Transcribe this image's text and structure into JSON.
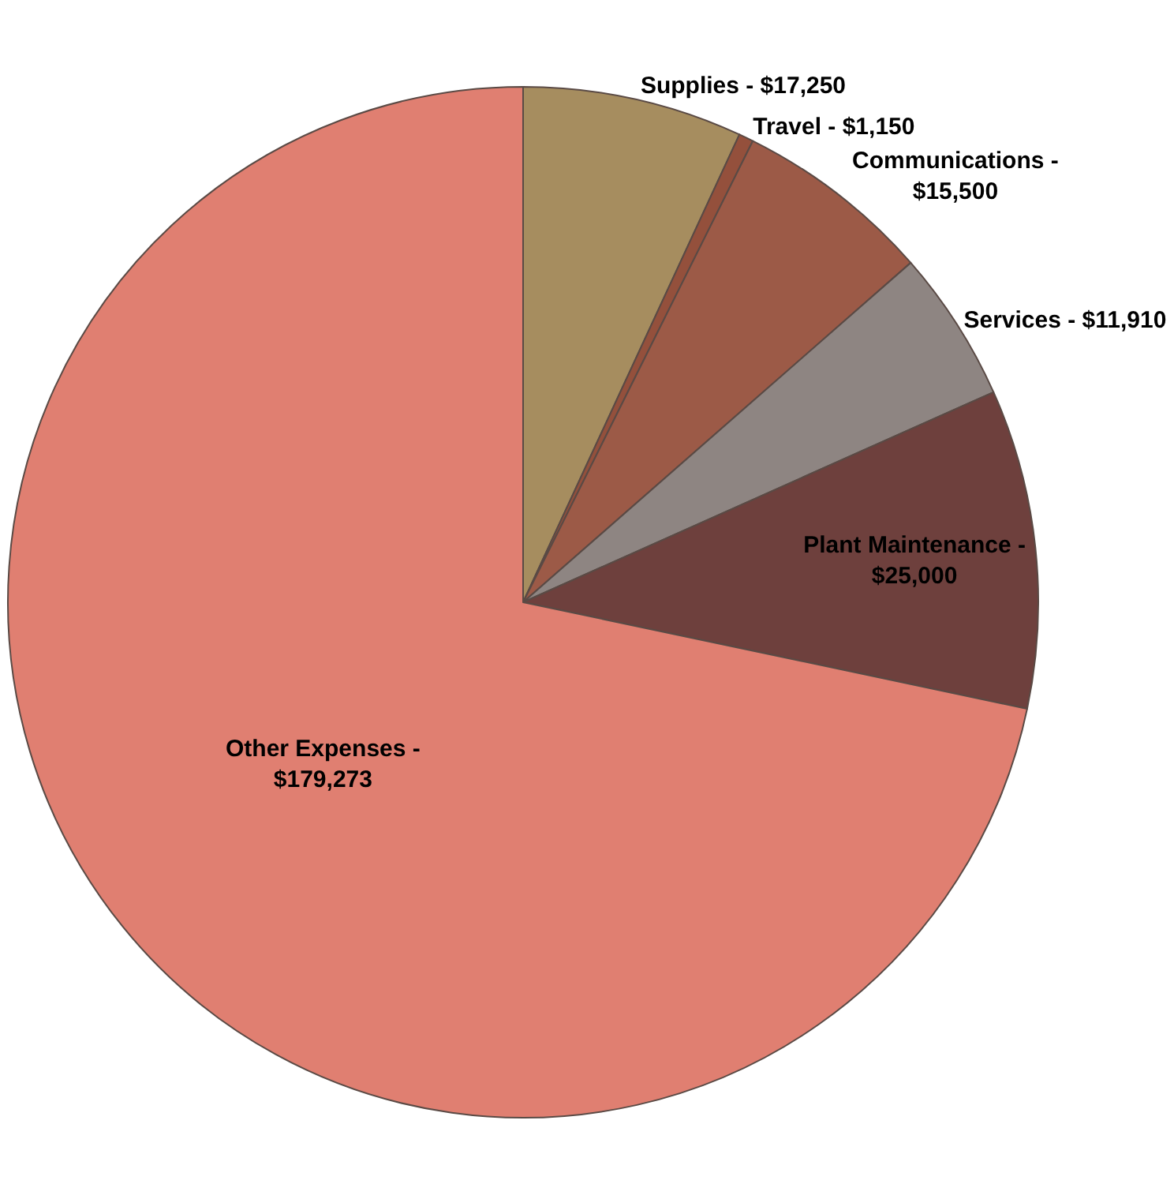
{
  "chart_data": {
    "type": "pie",
    "categories": [
      "Supplies - $17,250",
      "Travel - $1,150",
      "Communications -\n$15,500",
      "Services - $11,910",
      "Plant Maintenance -\n$25,000",
      "Other Expenses -\n$179,273"
    ],
    "values": [
      17250,
      1150,
      15500,
      11910,
      25000,
      179273
    ],
    "colors": [
      "#a68d5f",
      "#94503c",
      "#9c5a47",
      "#8e8582",
      "#6e403d",
      "#e07f71"
    ],
    "legend": false
  }
}
